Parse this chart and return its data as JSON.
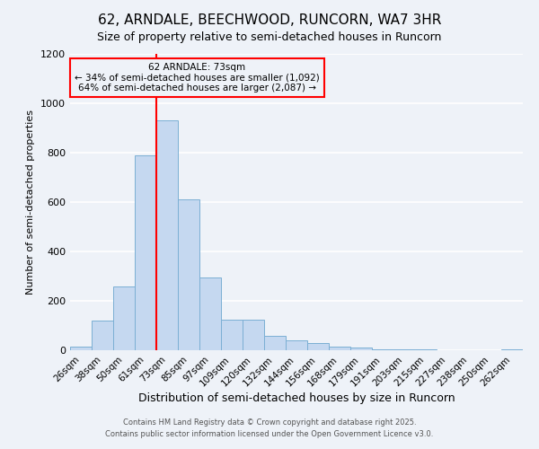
{
  "title": "62, ARNDALE, BEECHWOOD, RUNCORN, WA7 3HR",
  "subtitle": "Size of property relative to semi-detached houses in Runcorn",
  "xlabel": "Distribution of semi-detached houses by size in Runcorn",
  "ylabel": "Number of semi-detached properties",
  "bin_labels": [
    "26sqm",
    "38sqm",
    "50sqm",
    "61sqm",
    "73sqm",
    "85sqm",
    "97sqm",
    "109sqm",
    "120sqm",
    "132sqm",
    "144sqm",
    "156sqm",
    "168sqm",
    "179sqm",
    "191sqm",
    "203sqm",
    "215sqm",
    "227sqm",
    "238sqm",
    "250sqm",
    "262sqm"
  ],
  "values": [
    15,
    120,
    260,
    790,
    930,
    610,
    295,
    125,
    125,
    60,
    40,
    30,
    15,
    10,
    5,
    3,
    2,
    1,
    0,
    0,
    5
  ],
  "bar_color": "#c5d8f0",
  "bar_edge_color": "#7bafd4",
  "red_line_index": 4,
  "annotation_title": "62 ARNDALE: 73sqm",
  "annotation_line1": "← 34% of semi-detached houses are smaller (1,092)",
  "annotation_line2": "64% of semi-detached houses are larger (2,087) →",
  "ylim": [
    0,
    1200
  ],
  "yticks": [
    0,
    200,
    400,
    600,
    800,
    1000,
    1200
  ],
  "footer1": "Contains HM Land Registry data © Crown copyright and database right 2025.",
  "footer2": "Contains public sector information licensed under the Open Government Licence v3.0.",
  "bg_color": "#eef2f8",
  "grid_color": "#ffffff"
}
